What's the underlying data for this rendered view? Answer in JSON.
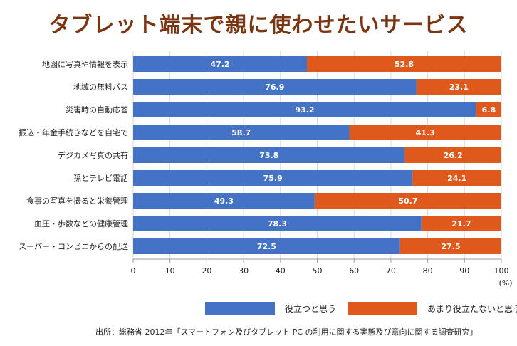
{
  "chart_data": {
    "type": "bar",
    "orientation": "horizontal",
    "stacked": true,
    "title": "タブレット端末で親に使わせたいサービス",
    "categories": [
      "地図に写真や情報を表示",
      "地域の無料バス",
      "災害時の自動応答",
      "振込・年金手続きなどを自宅で",
      "デジカメ写真の共有",
      "孫とテレビ電話",
      "食事の写真を撮ると栄養管理",
      "血圧・歩数などの健康管理",
      "スーパー・コンビニからの配送"
    ],
    "series": [
      {
        "name": "役立つと思う",
        "color": "#4472c4",
        "values": [
          47.2,
          76.9,
          93.2,
          58.7,
          73.8,
          75.9,
          49.3,
          78.3,
          72.5
        ]
      },
      {
        "name": "あまり役立たないと思う",
        "color": "#e0591c",
        "values": [
          52.8,
          23.1,
          6.8,
          41.3,
          26.2,
          24.1,
          50.7,
          21.7,
          27.5
        ]
      }
    ],
    "xlim": [
      0,
      100
    ],
    "xticks": [
      0,
      10,
      20,
      30,
      40,
      50,
      60,
      70,
      80,
      90,
      100
    ],
    "xunit": "(%)",
    "grid": true,
    "legend_position": "bottom"
  },
  "source": "出所：総務省 2012年「スマートフォン及びタブレット PC の利用に関する実態及び意向に関する調査研究」"
}
